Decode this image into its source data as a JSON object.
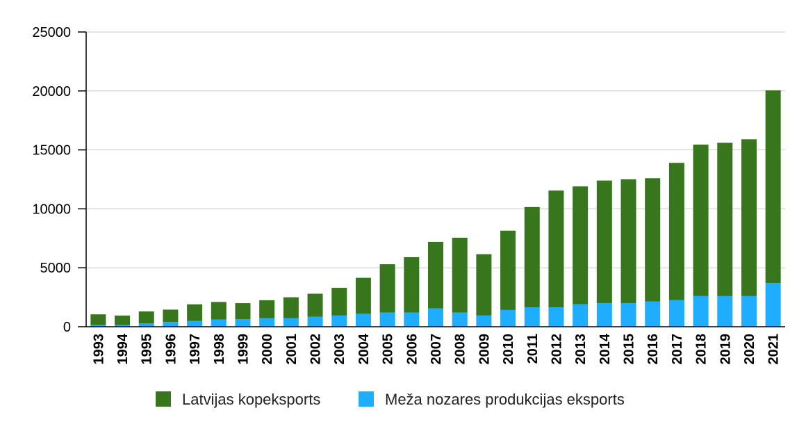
{
  "chart_data": {
    "type": "bar",
    "stacked": true,
    "title": "",
    "xlabel": "",
    "ylabel": "",
    "ylim": [
      0,
      25000
    ],
    "yticks": [
      0,
      5000,
      10000,
      15000,
      20000,
      25000
    ],
    "grid": true,
    "legend_position": "bottom",
    "categories": [
      "1993",
      "1994",
      "1995",
      "1996",
      "1997",
      "1998",
      "1999",
      "2000",
      "2001",
      "2002",
      "2003",
      "2004",
      "2005",
      "2006",
      "2007",
      "2008",
      "2009",
      "2010",
      "2011",
      "2012",
      "2013",
      "2014",
      "2015",
      "2016",
      "2017",
      "2018",
      "2019",
      "2020",
      "2021"
    ],
    "series": [
      {
        "name": "Meža nozares produkcijas eksports",
        "color": "#1fadff",
        "values": [
          150,
          150,
          280,
          400,
          500,
          620,
          650,
          720,
          720,
          850,
          950,
          1100,
          1200,
          1200,
          1550,
          1200,
          950,
          1420,
          1650,
          1650,
          1900,
          2000,
          2000,
          2150,
          2250,
          2600,
          2600,
          2600,
          3700
        ]
      },
      {
        "name": "Latvijas kopeksports",
        "color": "#38761d",
        "values": [
          1050,
          950,
          1300,
          1450,
          1900,
          2100,
          2000,
          2250,
          2500,
          2800,
          3300,
          4150,
          5300,
          5900,
          7200,
          7550,
          6150,
          8150,
          10150,
          11550,
          11900,
          12400,
          12500,
          12600,
          13900,
          15450,
          15600,
          15900,
          20050
        ]
      }
    ],
    "legend_order": [
      "Latvijas kopeksports",
      "Meža nozares produkcijas eksports"
    ]
  }
}
